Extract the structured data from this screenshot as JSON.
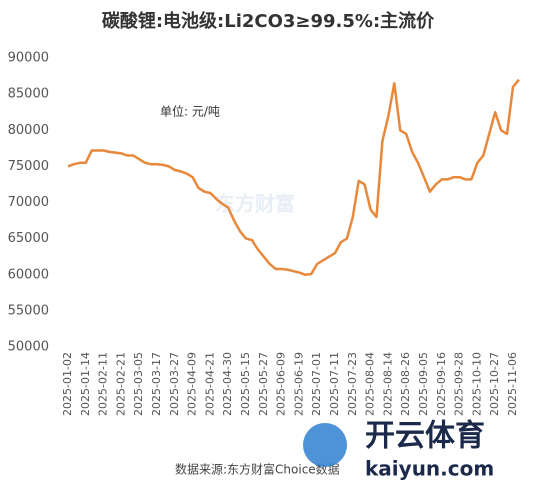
{
  "chart_data": {
    "type": "line",
    "title": "碳酸锂:电池级:Li2CO3≥99.5%:主流价",
    "unit": "单位: 元/吨",
    "source": "数据来源:东方财富Choice数据",
    "watermark": "东方财富",
    "logo_text": "开云体育",
    "logo_url": "kaiyun.com",
    "color": "#e8883a",
    "categories": [
      "2025-01-02",
      null,
      null,
      "2025-01-14",
      null,
      null,
      "2025-02-11",
      null,
      null,
      "2025-02-21",
      null,
      null,
      "2025-03-05",
      null,
      null,
      "2025-03-17",
      null,
      null,
      "2025-03-27",
      null,
      null,
      "2025-04-09",
      null,
      null,
      "2025-04-21",
      null,
      null,
      "2025-04-30",
      null,
      null,
      "2025-05-15",
      null,
      null,
      "2025-05-27",
      null,
      null,
      "2025-06-09",
      null,
      null,
      "2025-06-19",
      null,
      null,
      "2025-07-01",
      null,
      null,
      "2025-07-11",
      null,
      null,
      "2025-07-23",
      null,
      null,
      "2025-08-04",
      null,
      null,
      "2025-08-14",
      null,
      null,
      "2025-08-26",
      null,
      null,
      "2025-09-05",
      null,
      null,
      "2025-09-16",
      null,
      null,
      "2025-09-28",
      null,
      null,
      "2025-10-10",
      null,
      null,
      "2025-10-27",
      null,
      null,
      "2025-11-06",
      null
    ],
    "values": [
      75000,
      75300,
      75500,
      75500,
      77200,
      77200,
      77200,
      77000,
      76900,
      76800,
      76500,
      76500,
      76000,
      75500,
      75300,
      75300,
      75200,
      75000,
      74500,
      74300,
      74000,
      73500,
      72000,
      71500,
      71300,
      70500,
      69800,
      69300,
      67500,
      66000,
      65000,
      64800,
      63500,
      62500,
      61500,
      60800,
      60800,
      60700,
      60500,
      60300,
      60000,
      60100,
      61500,
      62000,
      62500,
      63000,
      64500,
      65000,
      68000,
      73000,
      72500,
      69000,
      68000,
      78500,
      82000,
      86500,
      80000,
      79500,
      77000,
      75500,
      73500,
      71500,
      72500,
      73200,
      73200,
      73500,
      73500,
      73200,
      73200,
      75500,
      76500,
      79500,
      82500,
      80000,
      79500,
      86000,
      87000
    ],
    "ylim": [
      50000,
      90000
    ],
    "yticks": [
      50000,
      55000,
      60000,
      65000,
      70000,
      75000,
      80000,
      85000,
      90000
    ],
    "grid": false
  }
}
